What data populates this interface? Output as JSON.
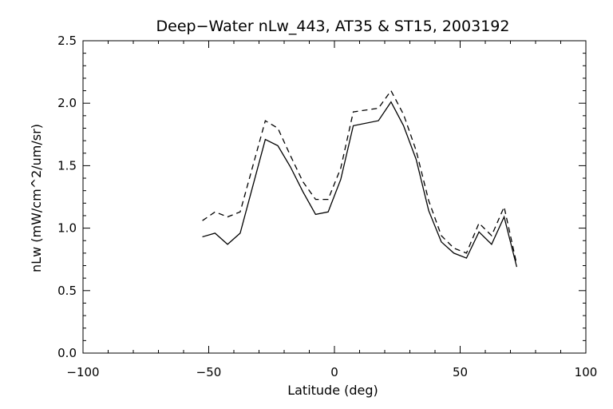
{
  "chart_data": {
    "type": "line",
    "title": "Deep−Water nLw_443, AT35 & ST15, 2003192",
    "xlabel": "Latitude (deg)",
    "ylabel": "nLw (mW/cm^2/um/sr)",
    "xlim": [
      -100,
      100
    ],
    "ylim": [
      0.0,
      2.5
    ],
    "xticks": [
      -100,
      -50,
      0,
      50,
      100
    ],
    "xtick_labels": [
      "−100",
      "−50",
      "0",
      "50",
      "100"
    ],
    "yticks": [
      0.0,
      0.5,
      1.0,
      1.5,
      2.0,
      2.5
    ],
    "ytick_labels": [
      "0.0",
      "0.5",
      "1.0",
      "1.5",
      "2.0",
      "2.5"
    ],
    "grid": false,
    "series": [
      {
        "style": "solid",
        "color": "#000000",
        "x": [
          -52.5,
          -47.5,
          -42.5,
          -37.5,
          -27.5,
          -22.5,
          -17.5,
          -12.5,
          -7.5,
          -2.5,
          2.5,
          7.5,
          17.5,
          22.5,
          27.5,
          32.5,
          37.5,
          42.5,
          47.5,
          52.5,
          57.5,
          62.5,
          67.5,
          72.5
        ],
        "y": [
          0.93,
          0.96,
          0.87,
          0.96,
          1.71,
          1.66,
          1.49,
          1.29,
          1.11,
          1.13,
          1.39,
          1.82,
          1.86,
          2.01,
          1.82,
          1.55,
          1.14,
          0.89,
          0.8,
          0.76,
          0.97,
          0.87,
          1.09,
          0.69
        ]
      },
      {
        "style": "dashed",
        "color": "#000000",
        "x": [
          -52.5,
          -47.5,
          -42.5,
          -37.5,
          -27.5,
          -22.5,
          -17.5,
          -12.5,
          -7.5,
          -2.5,
          2.5,
          7.5,
          17.5,
          22.5,
          27.5,
          32.5,
          37.5,
          42.5,
          47.5,
          52.5,
          57.5,
          62.5,
          67.5,
          72.5
        ],
        "y": [
          1.06,
          1.13,
          1.09,
          1.13,
          1.86,
          1.8,
          1.58,
          1.37,
          1.23,
          1.23,
          1.48,
          1.93,
          1.96,
          2.1,
          1.91,
          1.62,
          1.22,
          0.94,
          0.84,
          0.8,
          1.04,
          0.94,
          1.17,
          0.71
        ]
      }
    ]
  }
}
